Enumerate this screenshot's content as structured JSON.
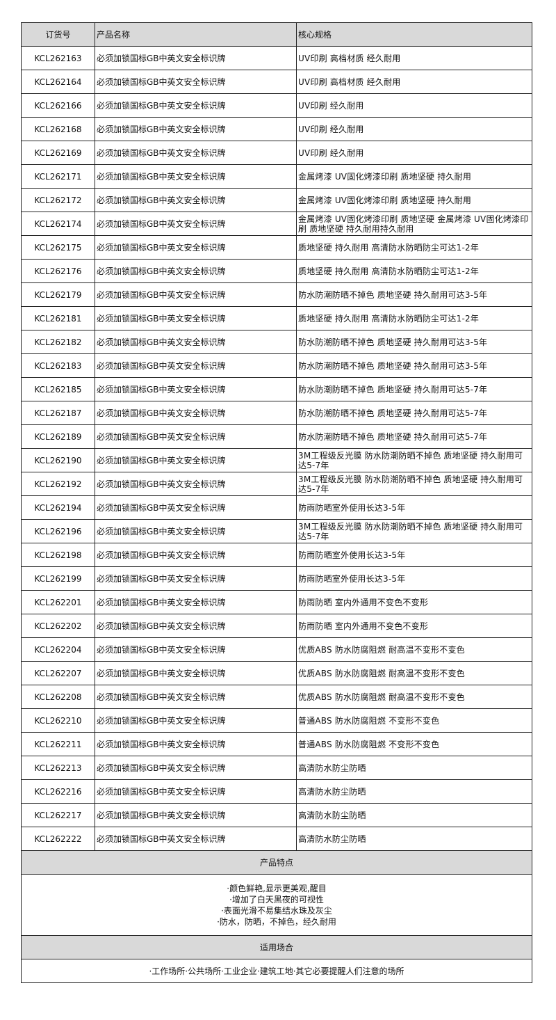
{
  "table": {
    "headers": [
      "订货号",
      "产品名称",
      "核心规格"
    ],
    "rows": [
      [
        "KCL262163",
        "必须加锁国标GB中英文安全标识牌",
        "UV印刷 高档材质 经久耐用"
      ],
      [
        "KCL262164",
        "必须加锁国标GB中英文安全标识牌",
        "UV印刷 高档材质 经久耐用"
      ],
      [
        "KCL262166",
        "必须加锁国标GB中英文安全标识牌",
        "UV印刷 经久耐用"
      ],
      [
        "KCL262168",
        "必须加锁国标GB中英文安全标识牌",
        "UV印刷 经久耐用"
      ],
      [
        "KCL262169",
        "必须加锁国标GB中英文安全标识牌",
        "UV印刷 经久耐用"
      ],
      [
        "KCL262171",
        "必须加锁国标GB中英文安全标识牌",
        "金属烤漆 UV固化烤漆印刷 质地坚硬 持久耐用"
      ],
      [
        "KCL262172",
        "必须加锁国标GB中英文安全标识牌",
        "金属烤漆 UV固化烤漆印刷 质地坚硬 持久耐用"
      ],
      [
        "KCL262174",
        "必须加锁国标GB中英文安全标识牌",
        "金属烤漆 UV固化烤漆印刷 质地坚硬 金属烤漆 UV固化烤漆印刷 质地坚硬 持久耐用持久耐用"
      ],
      [
        "KCL262175",
        "必须加锁国标GB中英文安全标识牌",
        "质地坚硬 持久耐用 高清防水防晒防尘可达1-2年"
      ],
      [
        "KCL262176",
        "必须加锁国标GB中英文安全标识牌",
        "质地坚硬 持久耐用 高清防水防晒防尘可达1-2年"
      ],
      [
        "KCL262179",
        "必须加锁国标GB中英文安全标识牌",
        "防水防潮防晒不掉色 质地坚硬 持久耐用可达3-5年"
      ],
      [
        "KCL262181",
        "必须加锁国标GB中英文安全标识牌",
        "质地坚硬 持久耐用 高清防水防晒防尘可达1-2年"
      ],
      [
        "KCL262182",
        "必须加锁国标GB中英文安全标识牌",
        "防水防潮防晒不掉色 质地坚硬 持久耐用可达3-5年"
      ],
      [
        "KCL262183",
        "必须加锁国标GB中英文安全标识牌",
        "防水防潮防晒不掉色 质地坚硬 持久耐用可达3-5年"
      ],
      [
        "KCL262185",
        "必须加锁国标GB中英文安全标识牌",
        "防水防潮防晒不掉色 质地坚硬 持久耐用可达5-7年"
      ],
      [
        "KCL262187",
        "必须加锁国标GB中英文安全标识牌",
        "防水防潮防晒不掉色 质地坚硬 持久耐用可达5-7年"
      ],
      [
        "KCL262189",
        "必须加锁国标GB中英文安全标识牌",
        "防水防潮防晒不掉色 质地坚硬 持久耐用可达5-7年"
      ],
      [
        "KCL262190",
        "必须加锁国标GB中英文安全标识牌",
        "3M工程级反光膜 防水防潮防晒不掉色 质地坚硬 持久耐用可达5-7年"
      ],
      [
        "KCL262192",
        "必须加锁国标GB中英文安全标识牌",
        "3M工程级反光膜 防水防潮防晒不掉色 质地坚硬 持久耐用可达5-7年"
      ],
      [
        "KCL262194",
        "必须加锁国标GB中英文安全标识牌",
        "防雨防晒室外使用长达3-5年"
      ],
      [
        "KCL262196",
        "必须加锁国标GB中英文安全标识牌",
        "3M工程级反光膜 防水防潮防晒不掉色 质地坚硬 持久耐用可达5-7年"
      ],
      [
        "KCL262198",
        "必须加锁国标GB中英文安全标识牌",
        "防雨防晒室外使用长达3-5年"
      ],
      [
        "KCL262199",
        "必须加锁国标GB中英文安全标识牌",
        "防雨防晒室外使用长达3-5年"
      ],
      [
        "KCL262201",
        "必须加锁国标GB中英文安全标识牌",
        "防雨防晒 室内外通用不变色不变形"
      ],
      [
        "KCL262202",
        "必须加锁国标GB中英文安全标识牌",
        "防雨防晒 室内外通用不变色不变形"
      ],
      [
        "KCL262204",
        "必须加锁国标GB中英文安全标识牌",
        "优质ABS 防水防腐阻燃 耐高温不变形不变色"
      ],
      [
        "KCL262207",
        "必须加锁国标GB中英文安全标识牌",
        "优质ABS 防水防腐阻燃 耐高温不变形不变色"
      ],
      [
        "KCL262208",
        "必须加锁国标GB中英文安全标识牌",
        "优质ABS 防水防腐阻燃 耐高温不变形不变色"
      ],
      [
        "KCL262210",
        "必须加锁国标GB中英文安全标识牌",
        "普通ABS 防水防腐阻燃 不变形不变色"
      ],
      [
        "KCL262211",
        "必须加锁国标GB中英文安全标识牌",
        "普通ABS 防水防腐阻燃 不变形不变色"
      ],
      [
        "KCL262213",
        "必须加锁国标GB中英文安全标识牌",
        "高清防水防尘防晒"
      ],
      [
        "KCL262216",
        "必须加锁国标GB中英文安全标识牌",
        "高清防水防尘防晒"
      ],
      [
        "KCL262217",
        "必须加锁国标GB中英文安全标识牌",
        "高清防水防尘防晒"
      ],
      [
        "KCL262222",
        "必须加锁国标GB中英文安全标识牌",
        "高清防水防尘防晒"
      ]
    ]
  },
  "features": {
    "title": "产品特点",
    "items": [
      "·颜色鲜艳,显示更美观,醒目",
      "·增加了白天黑夜的可视性",
      "·表面光滑不易集结水珠及灰尘",
      "·防水，防晒，不掉色，经久耐用"
    ]
  },
  "occasions": {
    "title": "适用场合",
    "text": "·工作场所·公共场所·工业企业·建筑工地·其它必要提醒人们注意的场所"
  },
  "colors": {
    "header_bg": "#d9d9d9",
    "border": "#222222"
  }
}
